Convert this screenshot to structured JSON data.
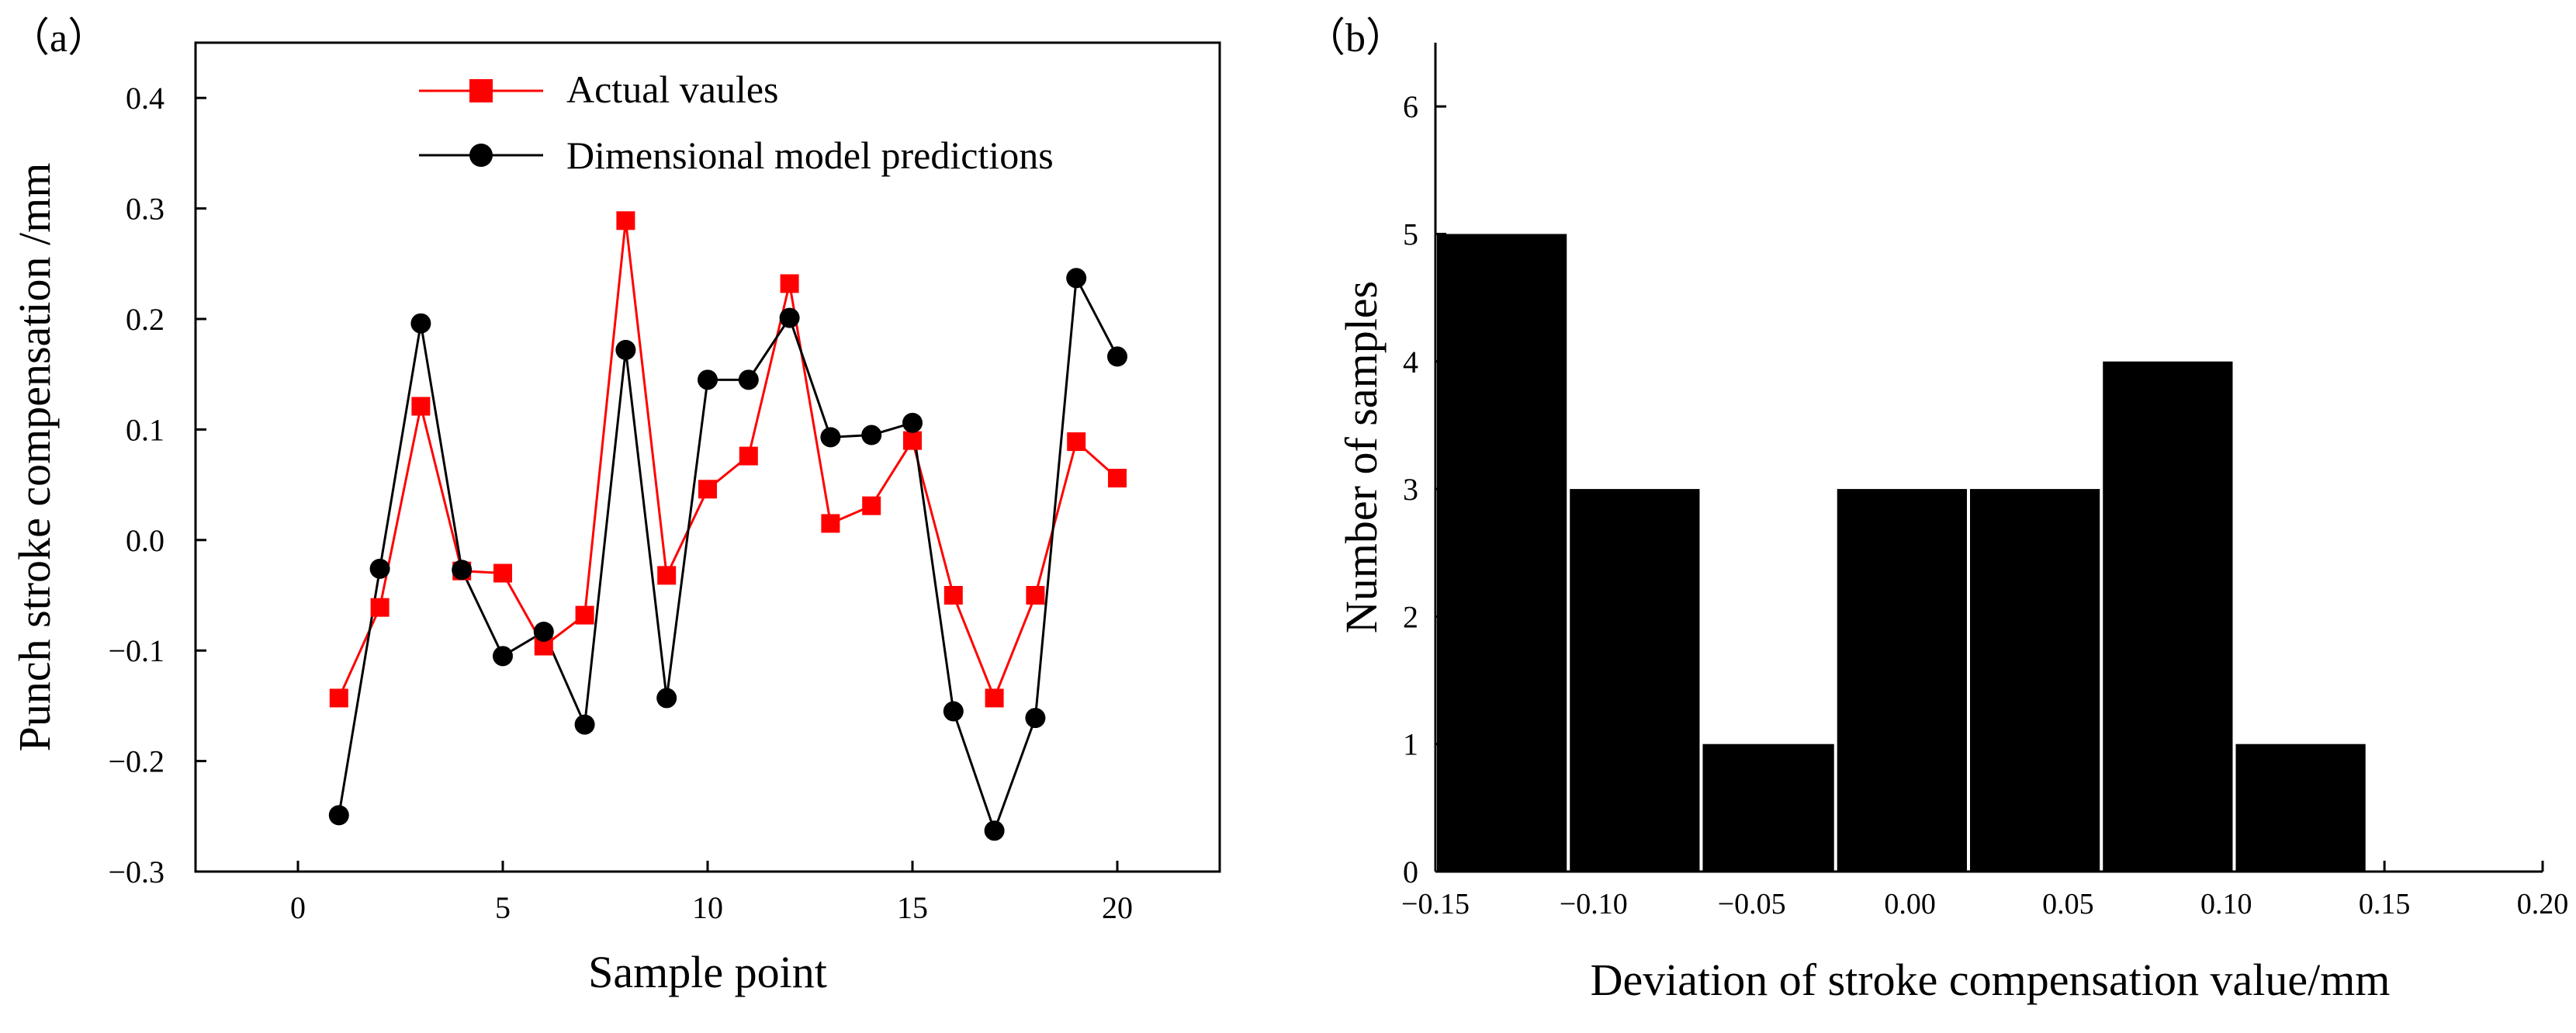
{
  "chart_data": [
    {
      "panel_label": "（a）",
      "type": "line",
      "title": "",
      "xlabel": "Sample point",
      "ylabel": "Punch stroke compensation /mm",
      "xlim": [
        -2.5,
        22.5
      ],
      "ylim": [
        -0.3,
        0.45
      ],
      "xticks": [
        0,
        5,
        10,
        15,
        20
      ],
      "xtick_labels": [
        "0",
        "5",
        "10",
        "15",
        "20"
      ],
      "yticks": [
        -0.3,
        -0.2,
        -0.1,
        0.0,
        0.1,
        0.2,
        0.3,
        0.4
      ],
      "ytick_labels": [
        "−0.3",
        "−0.2",
        "−0.1",
        "0.0",
        "0.1",
        "0.2",
        "0.3",
        "0.4"
      ],
      "grid": false,
      "legend": "top-center",
      "x": [
        1,
        2,
        3,
        4,
        5,
        6,
        7,
        8,
        9,
        10,
        11,
        12,
        13,
        14,
        15,
        16,
        17,
        18,
        19,
        20
      ],
      "series": [
        {
          "name": "Actual vaules",
          "color": "#ff0000",
          "marker": "square",
          "values": [
            -0.143,
            -0.061,
            0.121,
            -0.028,
            -0.03,
            -0.096,
            -0.068,
            0.289,
            -0.032,
            0.046,
            0.076,
            0.232,
            0.015,
            0.031,
            0.09,
            -0.05,
            -0.143,
            -0.05,
            0.089,
            0.056
          ]
        },
        {
          "name": "Dimensional model predictions",
          "color": "#000000",
          "marker": "circle",
          "values": [
            -0.249,
            -0.026,
            0.196,
            -0.027,
            -0.105,
            -0.083,
            -0.167,
            0.172,
            -0.143,
            0.145,
            0.145,
            0.201,
            0.093,
            0.095,
            0.106,
            -0.155,
            -0.263,
            -0.161,
            0.237,
            0.166
          ]
        }
      ]
    },
    {
      "panel_label": "（b）",
      "type": "bar",
      "subtype": "histogram",
      "title": "",
      "xlabel": "Deviation of stroke compensation value/mm",
      "ylabel": "Number of samples",
      "xlim": [
        -0.15,
        0.2
      ],
      "ylim": [
        0,
        6.5
      ],
      "xticks": [
        -0.15,
        -0.1,
        -0.05,
        0.0,
        0.05,
        0.1,
        0.15,
        0.2
      ],
      "xtick_labels": [
        "−0.15",
        "−0.10",
        "−0.05",
        "0.00",
        "0.05",
        "0.10",
        "0.15",
        "0.20"
      ],
      "yticks": [
        0,
        1,
        2,
        3,
        4,
        5,
        6
      ],
      "ytick_labels": [
        "0",
        "1",
        "2",
        "3",
        "4",
        "5",
        "6"
      ],
      "grid": false,
      "bin_edges": [
        -0.15,
        -0.108,
        -0.066,
        -0.0235,
        0.0185,
        0.0605,
        0.1025,
        0.1445
      ],
      "values": [
        5,
        3,
        1,
        3,
        3,
        4,
        1
      ],
      "color": "#000000"
    }
  ]
}
